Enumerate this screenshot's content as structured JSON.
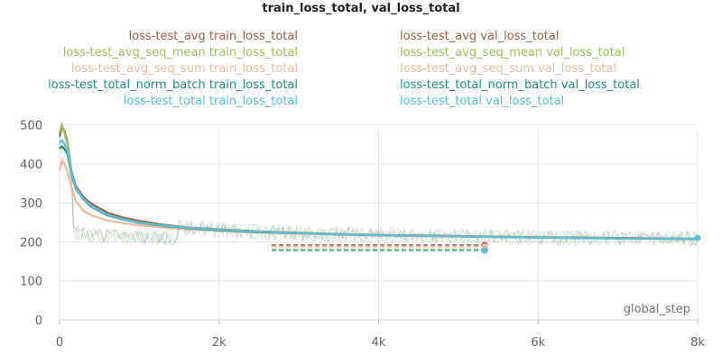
{
  "chart_data": {
    "type": "line",
    "title": "train_loss_total, val_loss_total",
    "xlabel": "global_step",
    "ylabel": "",
    "xlim": [
      0,
      8000
    ],
    "ylim": [
      0,
      520
    ],
    "x_ticks": [
      0,
      2000,
      4000,
      6000,
      8000
    ],
    "x_tick_labels": [
      "0",
      "2k",
      "4k",
      "6k",
      "8k"
    ],
    "y_ticks": [
      0,
      100,
      200,
      300,
      400,
      500
    ],
    "y_tick_labels": [
      "0",
      "100",
      "200",
      "300",
      "400",
      "500"
    ],
    "grid": true,
    "legend_position": "top",
    "series": [
      {
        "name": "loss-test_avg train_loss_total",
        "color": "#a0614a",
        "kind": "train",
        "x": [
          0,
          30,
          60,
          100,
          150,
          200,
          300,
          400,
          600,
          800,
          1000,
          1300,
          1600,
          2000,
          2500,
          3000,
          3500,
          4000,
          5000,
          6000,
          7000,
          8000
        ],
        "y": [
          470,
          495,
          485,
          455,
          380,
          345,
          315,
          298,
          275,
          262,
          254,
          244,
          237,
          232,
          227,
          223,
          220,
          218,
          215,
          212,
          210,
          208
        ]
      },
      {
        "name": "loss-test_avg_seq_mean train_loss_total",
        "color": "#9cc25a",
        "kind": "train",
        "x": [
          0,
          30,
          60,
          100,
          150,
          200,
          300,
          400,
          600,
          800,
          1000,
          1300,
          1600,
          2000,
          2500,
          3000,
          3500,
          4000,
          5000,
          6000,
          7000,
          8000
        ],
        "y": [
          480,
          500,
          480,
          450,
          375,
          340,
          310,
          292,
          270,
          258,
          250,
          242,
          236,
          231,
          226,
          222,
          219,
          217,
          214,
          211,
          209,
          208
        ]
      },
      {
        "name": "loss-test_avg_seq_sum train_loss_total",
        "color": "#f2b89c",
        "kind": "train",
        "x": [
          0,
          30,
          60,
          100,
          150,
          200,
          300,
          400,
          600,
          800,
          1000,
          1300,
          1600,
          2000,
          2500,
          3000,
          3500,
          4000,
          5000,
          6000,
          7000,
          8000
        ],
        "y": [
          385,
          410,
          400,
          380,
          340,
          305,
          280,
          268,
          255,
          248,
          243,
          237,
          232,
          228,
          224,
          221,
          218,
          216,
          213,
          211,
          209,
          207
        ]
      },
      {
        "name": "loss-test_total_norm_batch train_loss_total",
        "color": "#1f8f85",
        "kind": "train",
        "x": [
          0,
          30,
          60,
          100,
          150,
          200,
          300,
          400,
          600,
          800,
          1000,
          1300,
          1600,
          2000,
          2500,
          3000,
          3500,
          4000,
          5000,
          6000,
          7000,
          8000
        ],
        "y": [
          440,
          445,
          438,
          425,
          370,
          338,
          308,
          290,
          268,
          257,
          249,
          241,
          235,
          230,
          225,
          222,
          219,
          217,
          214,
          211,
          209,
          207
        ]
      },
      {
        "name": "loss-test_total train_loss_total",
        "color": "#5bc0d8",
        "kind": "train",
        "x": [
          0,
          30,
          60,
          100,
          150,
          200,
          300,
          400,
          600,
          800,
          1000,
          1300,
          1600,
          2000,
          2500,
          3000,
          3500,
          4000,
          5000,
          6000,
          7000,
          8000
        ],
        "y": [
          455,
          460,
          452,
          430,
          372,
          340,
          310,
          292,
          270,
          258,
          250,
          242,
          236,
          231,
          226,
          222,
          219,
          217,
          214,
          211,
          209,
          208
        ]
      },
      {
        "name": "loss-test_avg val_loss_total",
        "color": "#a0614a",
        "kind": "val",
        "x": [
          2660,
          5330
        ],
        "y": [
          192,
          192
        ]
      },
      {
        "name": "loss-test_avg_seq_mean val_loss_total",
        "color": "#9cc25a",
        "kind": "val",
        "x": [
          2660,
          5330
        ],
        "y": [
          181,
          181
        ]
      },
      {
        "name": "loss-test_avg_seq_sum val_loss_total",
        "color": "#f2b89c",
        "kind": "val",
        "x": [
          2660,
          5330
        ],
        "y": [
          188,
          188
        ]
      },
      {
        "name": "loss-test_total_norm_batch val_loss_total",
        "color": "#1f8f85",
        "kind": "val",
        "x": [
          2660,
          5330
        ],
        "y": [
          178,
          178
        ]
      },
      {
        "name": "loss-test_total val_loss_total",
        "color": "#5bc0d8",
        "kind": "val",
        "x": [
          2660,
          5330,
          8000
        ],
        "y": [
          178,
          178,
          210
        ]
      }
    ],
    "legend": {
      "left": [
        "loss-test_avg train_loss_total",
        "loss-test_avg_seq_mean train_loss_total",
        "loss-test_avg_seq_sum train_loss_total",
        "loss-test_total_norm_batch train_loss_total",
        "loss-test_total train_loss_total"
      ],
      "right": [
        "loss-test_avg val_loss_total",
        "loss-test_avg_seq_mean val_loss_total",
        "loss-test_avg_seq_sum val_loss_total",
        "loss-test_total_norm_batch val_loss_total",
        "loss-test_total val_loss_total"
      ]
    }
  }
}
